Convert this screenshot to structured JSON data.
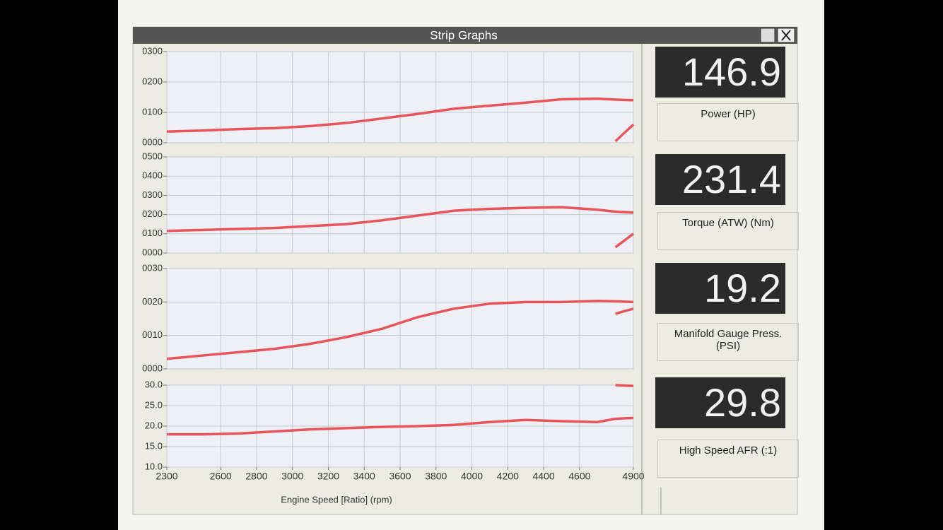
{
  "window": {
    "title": "Strip Graphs"
  },
  "readouts": [
    {
      "value": 146.9,
      "label": "Power (HP)"
    },
    {
      "value": 231.4,
      "label": "Torque (ATW) (Nm)"
    },
    {
      "value": 19.2,
      "label": "Manifold Gauge Press.\n(PSI)"
    },
    {
      "value": 29.8,
      "label": "High Speed AFR (:1)"
    }
  ],
  "chart_data": [
    {
      "type": "line",
      "grid": true,
      "xlim": [
        2300,
        4900
      ],
      "x": [
        2300,
        2500,
        2700,
        2900,
        3100,
        3300,
        3500,
        3700,
        3900,
        4100,
        4300,
        4500,
        4700,
        4800,
        4900
      ],
      "ylim": [
        0,
        300
      ],
      "yticks": [
        {
          "value": 0,
          "label": "0000"
        },
        {
          "value": 100,
          "label": "0100"
        },
        {
          "value": 200,
          "label": "0200"
        },
        {
          "value": 300,
          "label": "0300"
        }
      ],
      "series": [
        {
          "color": "#e8545a",
          "values": [
            37,
            40,
            45,
            48,
            55,
            65,
            80,
            95,
            112,
            122,
            132,
            143,
            145,
            142,
            140
          ]
        },
        {
          "color": "#e8545a",
          "values": [
            null,
            null,
            null,
            null,
            null,
            null,
            null,
            null,
            null,
            null,
            null,
            null,
            null,
            5,
            60
          ]
        }
      ]
    },
    {
      "type": "line",
      "grid": true,
      "xlim": [
        2300,
        4900
      ],
      "x": [
        2300,
        2500,
        2700,
        2900,
        3100,
        3300,
        3500,
        3700,
        3900,
        4100,
        4300,
        4500,
        4700,
        4800,
        4900
      ],
      "ylim": [
        0,
        500
      ],
      "yticks": [
        {
          "value": 0,
          "label": "0000"
        },
        {
          "value": 100,
          "label": "0100"
        },
        {
          "value": 200,
          "label": "0200"
        },
        {
          "value": 300,
          "label": "0300"
        },
        {
          "value": 400,
          "label": "0400"
        },
        {
          "value": 500,
          "label": "0500"
        }
      ],
      "series": [
        {
          "color": "#e8545a",
          "values": [
            115,
            120,
            125,
            130,
            140,
            150,
            170,
            195,
            220,
            230,
            235,
            238,
            225,
            215,
            210
          ]
        },
        {
          "color": "#e8545a",
          "values": [
            null,
            null,
            null,
            null,
            null,
            null,
            null,
            null,
            null,
            null,
            null,
            null,
            null,
            30,
            100
          ]
        }
      ]
    },
    {
      "type": "line",
      "grid": true,
      "xlim": [
        2300,
        4900
      ],
      "x": [
        2300,
        2500,
        2700,
        2900,
        3100,
        3300,
        3500,
        3700,
        3900,
        4100,
        4300,
        4500,
        4700,
        4800,
        4900
      ],
      "ylim": [
        0,
        30
      ],
      "yticks": [
        {
          "value": 0,
          "label": "0000"
        },
        {
          "value": 10,
          "label": "0010"
        },
        {
          "value": 20,
          "label": "0020"
        },
        {
          "value": 30,
          "label": "0030"
        }
      ],
      "series": [
        {
          "color": "#e8545a",
          "values": [
            3,
            4,
            5,
            6,
            7.5,
            9.5,
            12,
            15.5,
            18,
            19.5,
            20,
            20,
            20.3,
            20.2,
            20
          ]
        },
        {
          "color": "#e8545a",
          "values": [
            null,
            null,
            null,
            null,
            null,
            null,
            null,
            null,
            null,
            null,
            null,
            null,
            null,
            16.5,
            18
          ]
        }
      ]
    },
    {
      "type": "line",
      "grid": true,
      "xlim": [
        2300,
        4900
      ],
      "x": [
        2300,
        2500,
        2700,
        2900,
        3100,
        3300,
        3500,
        3700,
        3900,
        4100,
        4300,
        4500,
        4700,
        4800,
        4900
      ],
      "xticks": [
        2300,
        2600,
        2800,
        3000,
        3200,
        3400,
        3600,
        3800,
        4000,
        4200,
        4400,
        4600,
        4900
      ],
      "xlabel": "Engine Speed [Ratio] (rpm)",
      "ylim": [
        10,
        30
      ],
      "yticks": [
        {
          "value": 10,
          "label": "10.0"
        },
        {
          "value": 15,
          "label": "15.0"
        },
        {
          "value": 20,
          "label": "20.0"
        },
        {
          "value": 25,
          "label": "25.0"
        },
        {
          "value": 30,
          "label": "30.0"
        }
      ],
      "series": [
        {
          "color": "#e8545a",
          "values": [
            18,
            18,
            18.2,
            18.7,
            19.2,
            19.5,
            19.8,
            20,
            20.3,
            21,
            21.5,
            21.2,
            21,
            21.8,
            22
          ]
        },
        {
          "color": "#e8545a",
          "values": [
            null,
            null,
            null,
            null,
            null,
            null,
            null,
            null,
            null,
            null,
            null,
            null,
            null,
            30,
            29.8
          ]
        }
      ]
    }
  ]
}
